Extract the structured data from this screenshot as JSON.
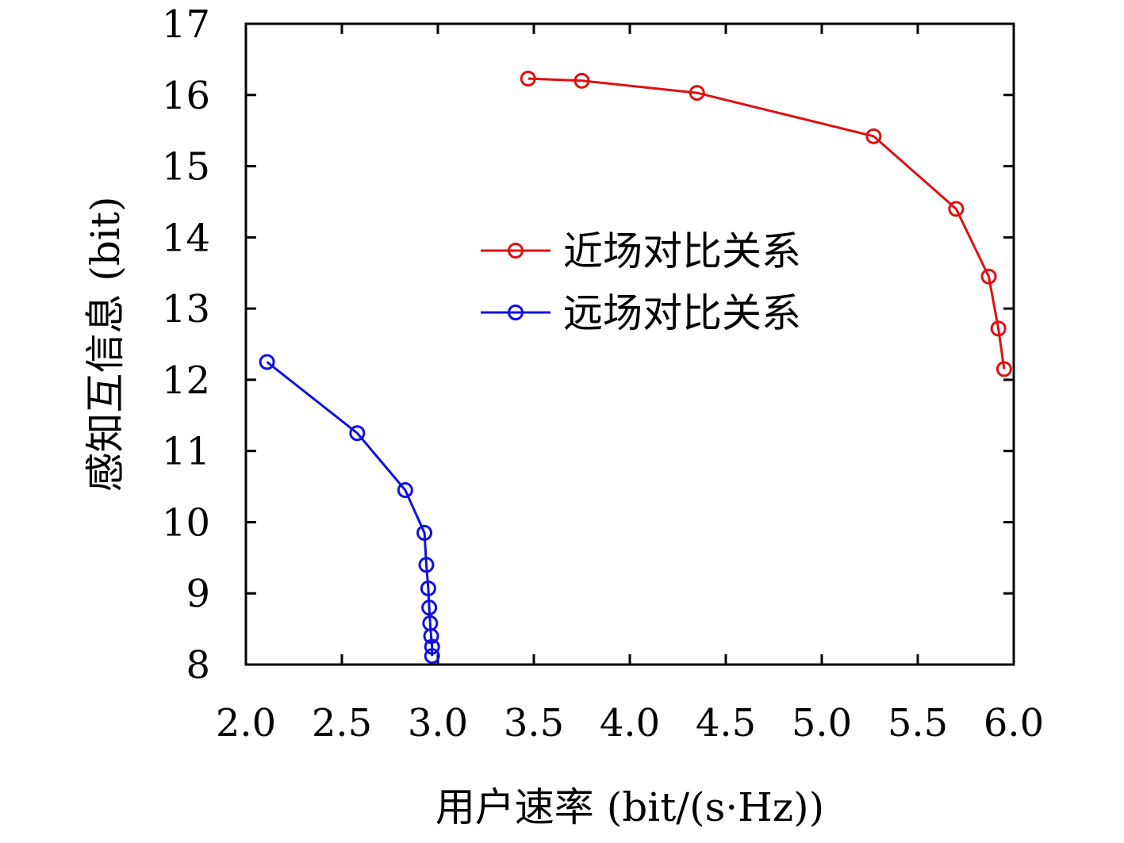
{
  "chart_data": {
    "type": "line",
    "title": "",
    "xlabel": "用户速率 (bit/(s·Hz))",
    "ylabel": "感知互信息 (bit)",
    "xlim": [
      2.0,
      6.0
    ],
    "ylim": [
      8,
      17
    ],
    "xticks": [
      "2.0",
      "2.5",
      "3.0",
      "3.5",
      "4.0",
      "4.5",
      "5.0",
      "5.5",
      "6.0"
    ],
    "yticks": [
      "8",
      "9",
      "10",
      "11",
      "12",
      "13",
      "14",
      "15",
      "16",
      "17"
    ],
    "grid": false,
    "legend_position": "center-right",
    "series": [
      {
        "name": "近场对比关系",
        "color": "#e01010",
        "marker": "circle",
        "x": [
          3.47,
          3.75,
          4.35,
          5.27,
          5.7,
          5.87,
          5.92,
          5.95
        ],
        "y": [
          16.23,
          16.2,
          16.03,
          15.42,
          14.4,
          13.45,
          12.72,
          12.15
        ]
      },
      {
        "name": "远场对比关系",
        "color": "#1010e0",
        "marker": "circle",
        "x": [
          2.11,
          2.58,
          2.83,
          2.93,
          2.94,
          2.95,
          2.955,
          2.96,
          2.965,
          2.97,
          2.97
        ],
        "y": [
          12.25,
          11.25,
          10.45,
          9.85,
          9.4,
          9.07,
          8.8,
          8.58,
          8.4,
          8.25,
          8.12
        ]
      }
    ]
  }
}
